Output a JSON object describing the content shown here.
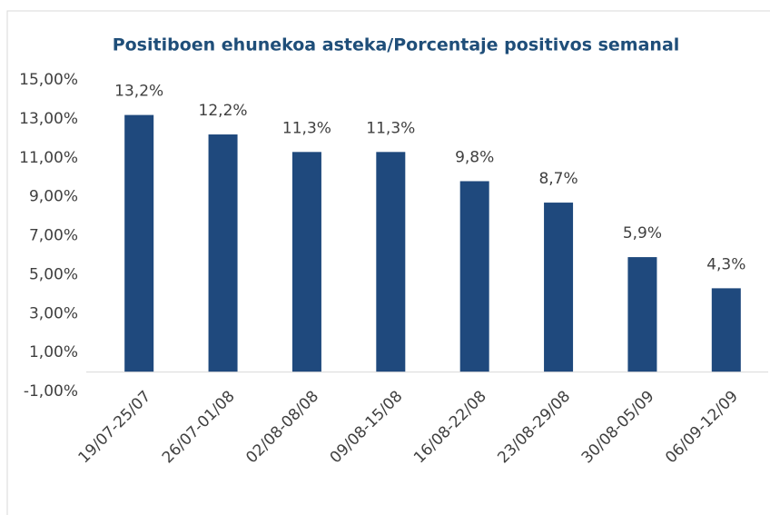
{
  "chart_data": {
    "type": "bar",
    "title": "Positiboen ehunekoa asteka/Porcentaje positivos semanal",
    "categories": [
      "19/07-25/07",
      "26/07-01/08",
      "02/08-08/08",
      "09/08-15/08",
      "16/08-22/08",
      "23/08-29/08",
      "30/08-05/09",
      "06/09-12/09"
    ],
    "values": [
      13.2,
      12.2,
      11.3,
      11.3,
      9.8,
      8.7,
      5.9,
      4.3
    ],
    "value_labels": [
      "13,2%",
      "12,2%",
      "11,3%",
      "11,3%",
      "9,8%",
      "8,7%",
      "5,9%",
      "4,3%"
    ],
    "color": "#1f497d",
    "ylim": [
      -1,
      15
    ],
    "yticks": [
      {
        "value": -1,
        "label": "-1,00%"
      },
      {
        "value": 1,
        "label": "1,00%"
      },
      {
        "value": 3,
        "label": "3,00%"
      },
      {
        "value": 5,
        "label": "5,00%"
      },
      {
        "value": 7,
        "label": "7,00%"
      },
      {
        "value": 9,
        "label": "9,00%"
      },
      {
        "value": 11,
        "label": "11,00%"
      },
      {
        "value": 13,
        "label": "13,00%"
      },
      {
        "value": 15,
        "label": "15,00%"
      }
    ],
    "grid": false
  }
}
